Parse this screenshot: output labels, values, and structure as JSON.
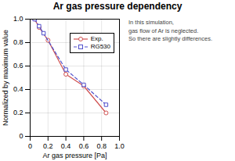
{
  "chart_data": {
    "type": "line",
    "title": "Ar gas pressure dependency",
    "xlabel": "Ar gas pressure [Pa]",
    "ylabel": "Normalized by maximum value",
    "annotations": [
      "In this simulation,",
      "gas flow of Ar is neglected.",
      "So there are slightly differences."
    ],
    "xlim": [
      0,
      1.0
    ],
    "ylim": [
      0,
      1.0
    ],
    "xticks": [
      0,
      0.2,
      0.4,
      0.6,
      0.8,
      {
        "value": 1.0,
        "label": "1.0"
      }
    ],
    "yticks": [
      0,
      0.2,
      0.4,
      0.6,
      0.8,
      {
        "value": 1.0,
        "label": "1.0"
      }
    ],
    "grid": true,
    "legend": "upper right",
    "series": [
      {
        "name": "Exp.",
        "color": "#d05050",
        "marker": "circle",
        "line_style": "solid",
        "x": [
          0.05,
          0.1,
          0.2,
          0.4,
          0.6,
          0.85
        ],
        "values": [
          1.0,
          0.93,
          0.82,
          0.53,
          0.43,
          0.2
        ]
      },
      {
        "name": "RG530",
        "color": "#5050cc",
        "marker": "square",
        "line_style": "dashed",
        "x": [
          0.05,
          0.1,
          0.15,
          0.4,
          0.6,
          0.85
        ],
        "values": [
          1.0,
          0.94,
          0.88,
          0.57,
          0.44,
          0.27
        ]
      }
    ]
  }
}
